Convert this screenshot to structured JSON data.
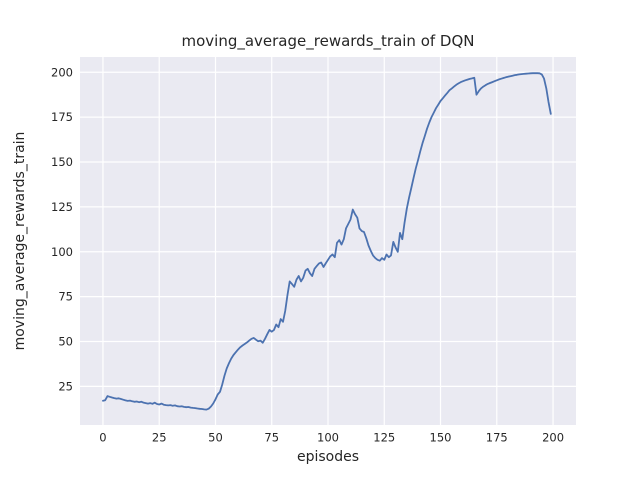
{
  "figure": {
    "background": "#ffffff"
  },
  "chart_data": {
    "type": "line",
    "title": "moving_average_rewards_train of DQN",
    "xlabel": "episodes",
    "ylabel": "moving_average_rewards_train",
    "legend": "none",
    "grid": true,
    "xticks": [
      0,
      25,
      50,
      75,
      100,
      125,
      150,
      175,
      200
    ],
    "yticks": [
      25,
      50,
      75,
      100,
      125,
      150,
      175,
      200
    ],
    "xlim": [
      -10.2,
      210.2
    ],
    "ylim": [
      3.5,
      208.5
    ],
    "x_start": 0,
    "x_step": 1,
    "values": [
      17.0,
      17.3,
      19.6,
      19.2,
      18.8,
      18.5,
      18.2,
      18.4,
      18.0,
      17.6,
      17.2,
      16.9,
      17.1,
      16.7,
      16.4,
      16.6,
      16.2,
      16.5,
      16.0,
      15.7,
      15.4,
      15.7,
      15.3,
      15.9,
      15.2,
      14.9,
      15.4,
      14.8,
      14.6,
      14.4,
      14.6,
      14.2,
      14.4,
      14.0,
      13.8,
      13.9,
      13.6,
      13.4,
      13.5,
      13.2,
      13.0,
      12.9,
      12.7,
      12.5,
      12.4,
      12.2,
      12.1,
      12.6,
      13.8,
      15.5,
      17.8,
      20.5,
      22.0,
      26.0,
      31.0,
      35.0,
      38.0,
      40.5,
      42.5,
      44.0,
      45.5,
      46.8,
      47.8,
      48.6,
      49.5,
      50.5,
      51.5,
      52.0,
      51.0,
      50.2,
      50.5,
      49.3,
      51.5,
      54.0,
      56.5,
      55.5,
      56.5,
      59.5,
      58.0,
      62.5,
      61.0,
      67.0,
      76.0,
      83.5,
      82.0,
      80.5,
      84.5,
      86.5,
      83.5,
      85.5,
      89.5,
      90.5,
      88.0,
      86.5,
      90.5,
      92.0,
      93.5,
      94.0,
      91.5,
      93.5,
      95.5,
      97.5,
      98.5,
      97.0,
      105.0,
      106.5,
      104.0,
      107.0,
      113.0,
      115.5,
      118.0,
      123.5,
      121.0,
      119.0,
      113.0,
      111.5,
      111.0,
      107.5,
      103.5,
      100.5,
      98.0,
      96.5,
      95.5,
      95.0,
      96.5,
      95.5,
      98.5,
      97.0,
      98.0,
      105.5,
      102.5,
      100.0,
      110.5,
      107.0,
      116.0,
      124.0,
      130.0,
      135.5,
      141.0,
      146.5,
      151.0,
      156.0,
      160.5,
      164.5,
      168.5,
      172.0,
      175.0,
      177.5,
      180.0,
      182.0,
      184.0,
      185.5,
      187.0,
      188.5,
      190.0,
      191.0,
      192.0,
      193.0,
      193.8,
      194.5,
      195.0,
      195.5,
      195.9,
      196.3,
      196.6,
      196.9,
      187.5,
      189.5,
      191.0,
      192.0,
      192.8,
      193.5,
      194.0,
      194.5,
      195.0,
      195.5,
      196.0,
      196.4,
      196.8,
      197.2,
      197.5,
      197.8,
      198.1,
      198.4,
      198.6,
      198.8,
      199.0,
      199.1,
      199.2,
      199.3,
      199.4,
      199.5,
      199.5,
      199.5,
      199.4,
      198.8,
      196.5,
      191.0,
      183.5,
      176.8
    ],
    "style": {
      "line_color": "#4C72B0",
      "plot_bg": "#EAEAF2",
      "grid_color": "#FFFFFF",
      "text_color": "#262626"
    }
  }
}
